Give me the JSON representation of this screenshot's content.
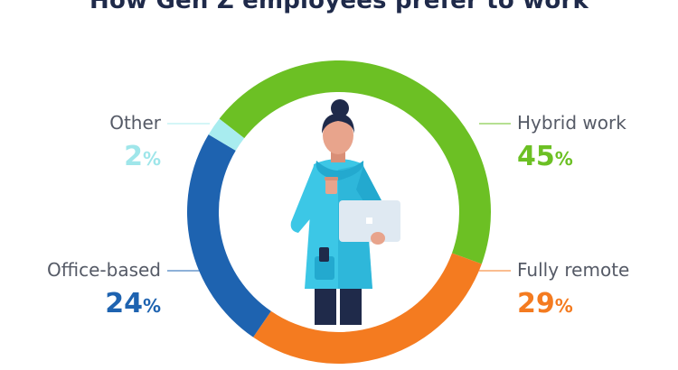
{
  "chart_data": {
    "type": "pie",
    "title": "How Gen Z employees prefer to work",
    "donut": true,
    "slices": [
      {
        "label": "Hybrid work",
        "value": 45,
        "display": "45%",
        "color": "#6cc024"
      },
      {
        "label": "Fully remote",
        "value": 29,
        "display": "29%",
        "color": "#f47b20"
      },
      {
        "label": "Office-based",
        "value": 24,
        "display": "24%",
        "color": "#1e63b0"
      },
      {
        "label": "Other",
        "value": 2,
        "display": "2%",
        "color": "#a8ecef"
      }
    ]
  },
  "illustration": {
    "subject": "person-holding-laptop-and-coffee",
    "colors": {
      "skin": "#e8a48c",
      "hair": "#1f2a4a",
      "coat": "#3cc7e6",
      "coat_shade": "#23a9cf",
      "laptop": "#dfe9f2",
      "pants": "#1f2a4a"
    }
  }
}
